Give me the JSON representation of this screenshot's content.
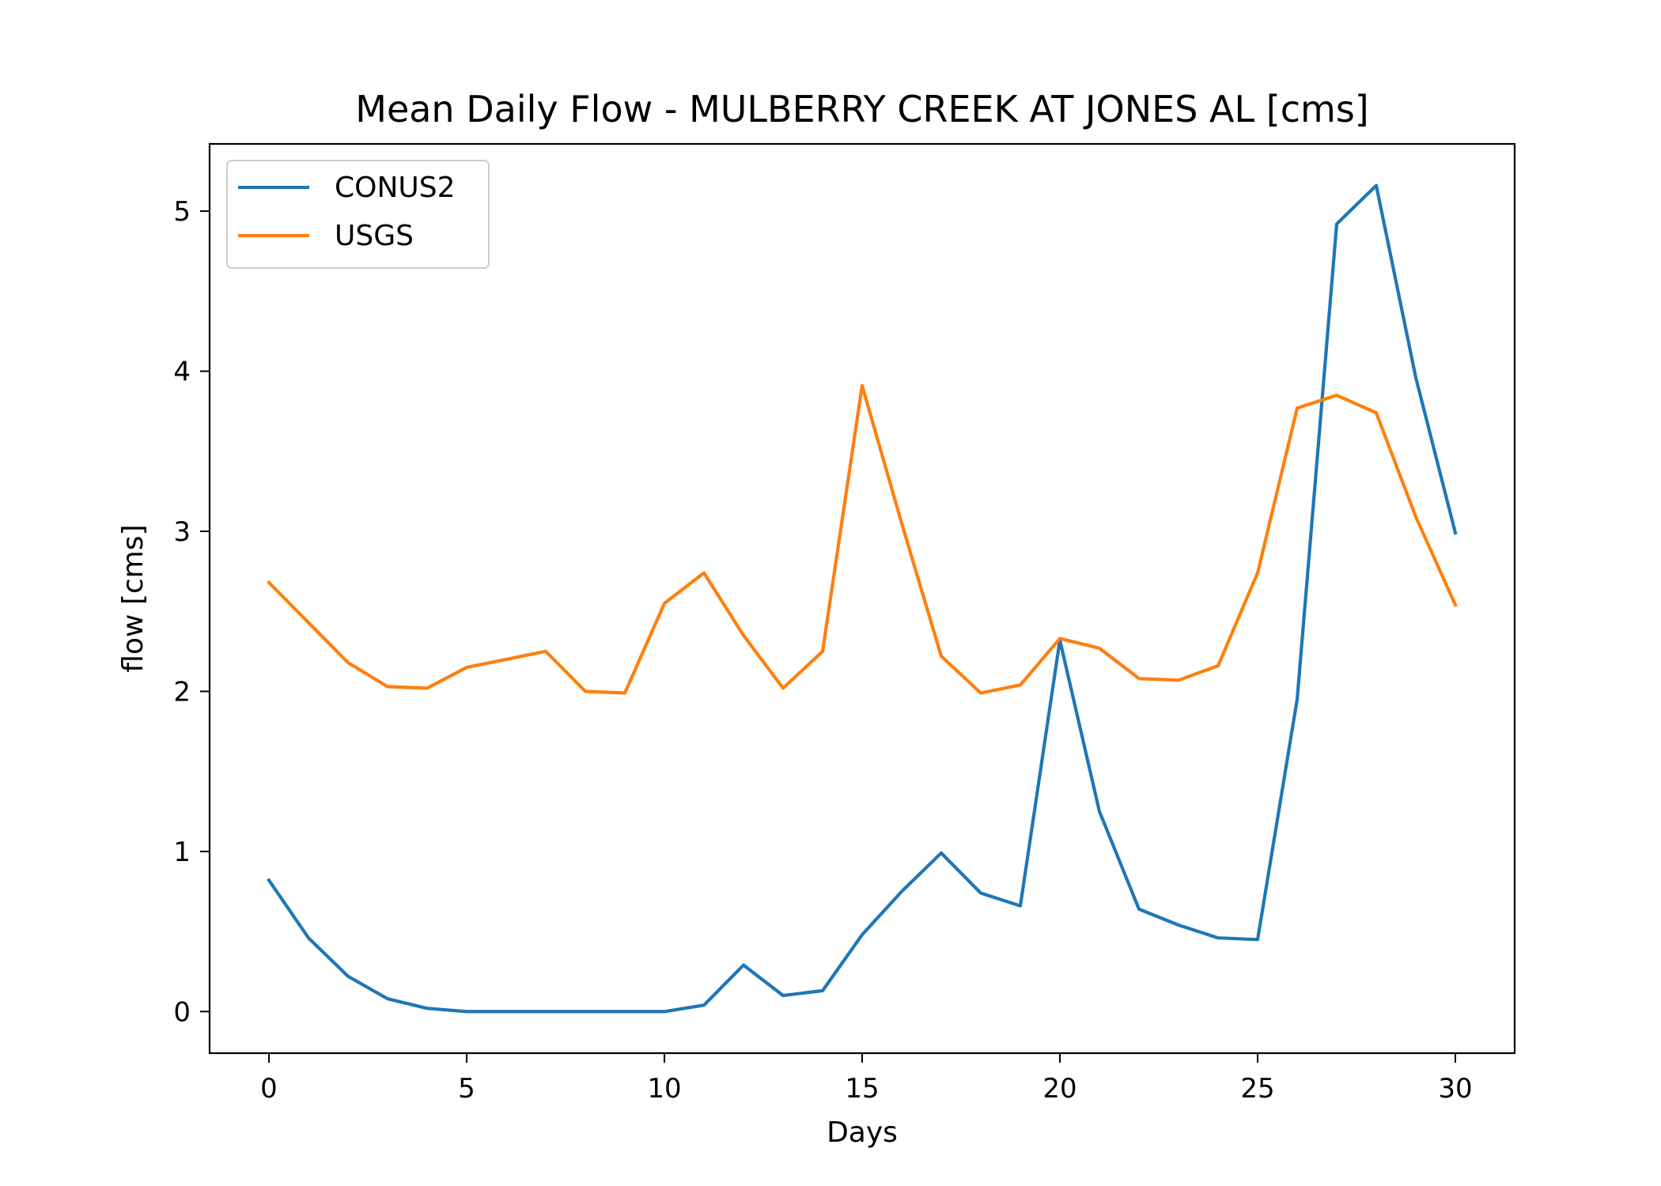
{
  "chart_data": {
    "type": "line",
    "title": "Mean Daily Flow - MULBERRY CREEK AT JONES AL [cms]",
    "xlabel": "Days",
    "ylabel": "flow [cms]",
    "xlim": [
      -1.5,
      31.5
    ],
    "ylim": [
      -0.26,
      5.42
    ],
    "xticks": [
      0,
      5,
      10,
      15,
      20,
      25,
      30
    ],
    "yticks": [
      0,
      1,
      2,
      3,
      4,
      5
    ],
    "grid": false,
    "legend_position": "top-left",
    "x": [
      0,
      1,
      2,
      3,
      4,
      5,
      6,
      7,
      8,
      9,
      10,
      11,
      12,
      13,
      14,
      15,
      16,
      17,
      18,
      19,
      20,
      21,
      22,
      23,
      24,
      25,
      26,
      27,
      28,
      29,
      30
    ],
    "series": [
      {
        "name": "CONUS2",
        "color": "#1f77b4",
        "values": [
          0.82,
          0.46,
          0.22,
          0.08,
          0.02,
          0.0,
          0.0,
          0.0,
          0.0,
          0.0,
          0.0,
          0.04,
          0.29,
          0.1,
          0.13,
          0.48,
          0.75,
          0.99,
          0.74,
          0.66,
          2.32,
          1.25,
          0.64,
          0.54,
          0.46,
          0.45,
          1.95,
          4.92,
          5.16,
          3.96,
          2.99
        ]
      },
      {
        "name": "USGS",
        "color": "#ff7f0e",
        "values": [
          2.68,
          2.43,
          2.18,
          2.03,
          2.02,
          2.15,
          2.2,
          2.25,
          2.0,
          1.99,
          2.55,
          2.74,
          2.35,
          2.02,
          2.25,
          3.91,
          3.05,
          2.22,
          1.99,
          2.04,
          2.33,
          2.27,
          2.08,
          2.07,
          2.16,
          2.74,
          3.77,
          3.85,
          3.74,
          3.09,
          2.54
        ]
      }
    ]
  }
}
